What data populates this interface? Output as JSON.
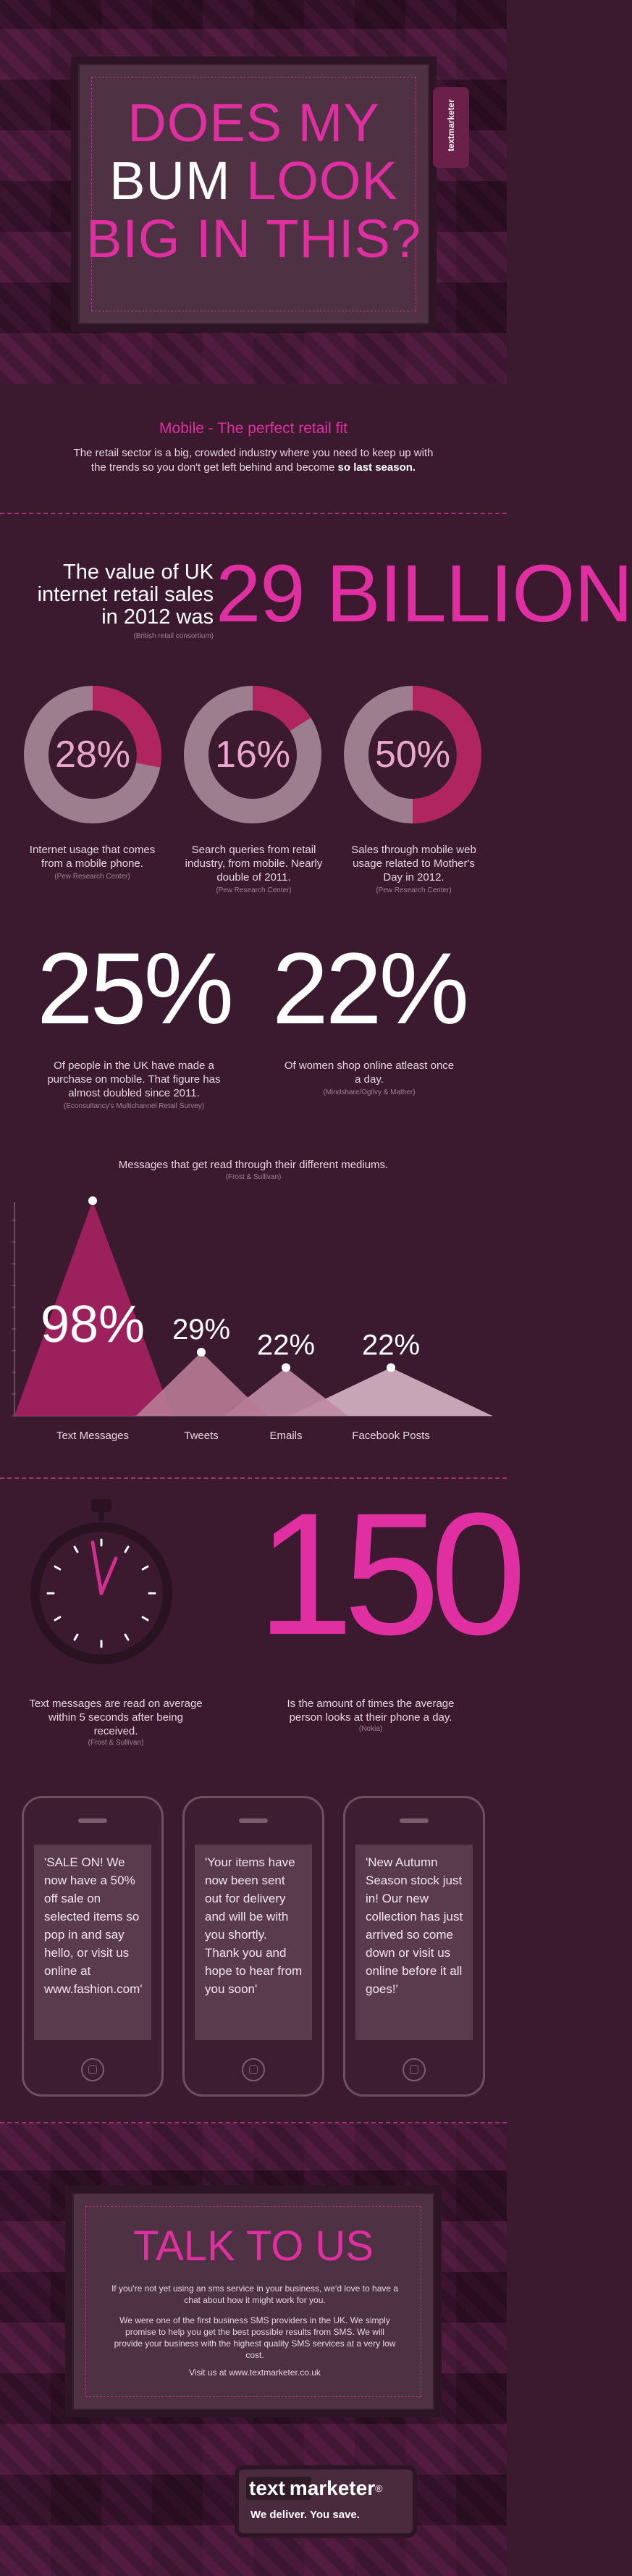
{
  "header": {
    "line1": "DOES MY",
    "line2a": "BUM",
    "line2b": "LOOK",
    "line3": "BIG IN THIS?",
    "badge": "textmarketer"
  },
  "intro": {
    "title": "Mobile - The perfect retail fit",
    "body": "The retail sector is a big, crowded industry where you need to keep up with the trends so you don't get left behind and become",
    "body_bold": "so last season."
  },
  "value": {
    "text": "The value of UK internet retail sales in 2012 was",
    "source": "(British retail consortium)",
    "big": "29 BILLION"
  },
  "donuts": [
    {
      "pct": "28%",
      "value": 28,
      "text": "Internet usage that comes from a mobile phone.",
      "source": "(Pew Research Center)"
    },
    {
      "pct": "16%",
      "value": 16,
      "text": "Search queries from retail industry, from mobile. Nearly double of 2011.",
      "source": "(Pew Research Center)"
    },
    {
      "pct": "50%",
      "value": 50,
      "text": "Sales through mobile web usage related to Mother's Day in 2012.",
      "source": "(Pew Research Center)"
    }
  ],
  "stats": [
    {
      "big": "25%",
      "text": "Of people in the UK have made a purchase on mobile. That figure has almost doubled since 2011.",
      "source": "(Econsultancy's Multichannel Retail Survey)"
    },
    {
      "big": "22%",
      "text": "Of women shop online atleast once a day.",
      "source": "(Mindshare/Ogilvy & Mather)"
    }
  ],
  "messages": {
    "title": "Messages that get read through their different mediums.",
    "source": "(Frost & Sullivan)"
  },
  "chart_data": {
    "type": "area",
    "categories": [
      "Text Messages",
      "Tweets",
      "Emails",
      "Facebook Posts"
    ],
    "values": [
      98,
      29,
      22,
      22
    ],
    "labels": [
      "98%",
      "29%",
      "22%",
      "22%"
    ],
    "ylim": [
      0,
      100
    ],
    "colors": [
      "#a5215f",
      "#b67a94",
      "#bf8aa5",
      "#d4b0c2"
    ]
  },
  "timing": {
    "big": "150",
    "left_text": "Text messages are read on average within 5 seconds after being received.",
    "left_source": "(Frost & Sullivan)",
    "right_text": "Is the amount of times the average person looks at their phone a day.",
    "right_source": "(Nokia)"
  },
  "phones": [
    {
      "msg": "'SALE ON! We now have a 50% off sale on selected items so pop in and say hello, or visit us online at www.fashion.com'"
    },
    {
      "msg": "'Your items have now been sent out for delivery and will be with you shortly. Thank you and hope to hear from you soon'"
    },
    {
      "msg": "'New Autumn Season stock just in! Our new collection has just arrived so come down or visit us online before it all goes!'"
    }
  ],
  "footer": {
    "title": "TALK TO US",
    "p1": "If you're not yet using an sms service in your business, we'd love to have a chat about how it might work for you.",
    "p2": "We were one of the first business SMS providers in the UK. We simply promise to help you get the best possible results from SMS. We will provide your business with the highest quality SMS services at a very low cost.",
    "p3": "Visit us at www.textmarketer.co.uk",
    "logo_text": "text",
    "logo_bold": "marketer",
    "logo_tag": "We deliver. You save.",
    "logo_reg": "®"
  }
}
